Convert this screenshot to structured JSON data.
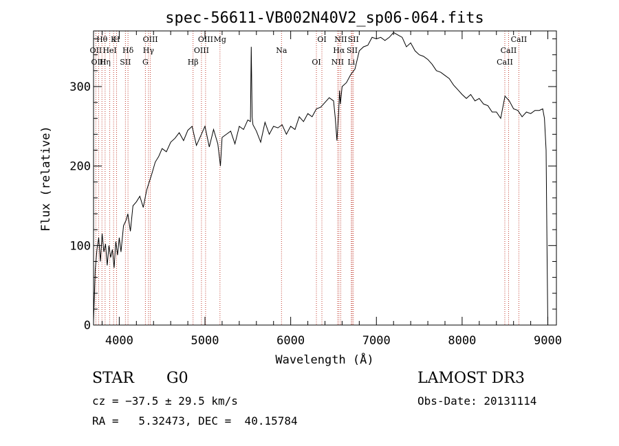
{
  "chart_data": {
    "type": "line",
    "title": "spec-56611-VB002N40V2_sp06-064.fits",
    "xlabel": "Wavelength (Å)",
    "ylabel": "Flux (relative)",
    "xlim": [
      3700,
      9100
    ],
    "ylim": [
      0,
      370
    ],
    "xticks": [
      4000,
      5000,
      6000,
      7000,
      8000,
      9000
    ],
    "yticks": [
      0,
      100,
      200,
      300
    ],
    "series": [
      {
        "name": "spectrum",
        "x": [
          3700,
          3720,
          3740,
          3760,
          3780,
          3800,
          3820,
          3840,
          3860,
          3880,
          3900,
          3920,
          3940,
          3960,
          3980,
          4000,
          4020,
          4050,
          4080,
          4100,
          4130,
          4160,
          4200,
          4240,
          4280,
          4320,
          4350,
          4380,
          4420,
          4460,
          4500,
          4550,
          4600,
          4650,
          4700,
          4750,
          4800,
          4850,
          4900,
          4950,
          5000,
          5050,
          5100,
          5150,
          5180,
          5200,
          5250,
          5300,
          5350,
          5400,
          5450,
          5500,
          5530,
          5540,
          5550,
          5560,
          5600,
          5650,
          5700,
          5750,
          5800,
          5850,
          5900,
          5950,
          6000,
          6050,
          6100,
          6150,
          6200,
          6250,
          6300,
          6350,
          6400,
          6450,
          6500,
          6520,
          6540,
          6560,
          6570,
          6580,
          6600,
          6650,
          6700,
          6750,
          6800,
          6850,
          6900,
          6950,
          7000,
          7050,
          7100,
          7150,
          7200,
          7250,
          7300,
          7350,
          7400,
          7450,
          7500,
          7550,
          7600,
          7650,
          7700,
          7750,
          7800,
          7850,
          7900,
          7950,
          8000,
          8050,
          8100,
          8150,
          8200,
          8250,
          8300,
          8350,
          8400,
          8450,
          8500,
          8550,
          8600,
          8650,
          8700,
          8750,
          8800,
          8850,
          8900,
          8940,
          8960,
          8980,
          8990,
          9000
        ],
        "y": [
          5,
          70,
          95,
          110,
          80,
          115,
          92,
          102,
          75,
          100,
          85,
          95,
          72,
          105,
          88,
          110,
          92,
          125,
          132,
          140,
          118,
          150,
          155,
          162,
          148,
          170,
          180,
          190,
          205,
          212,
          222,
          218,
          230,
          235,
          242,
          232,
          245,
          250,
          226,
          238,
          250,
          224,
          246,
          228,
          200,
          236,
          240,
          244,
          228,
          250,
          246,
          258,
          256,
          350,
          262,
          252,
          244,
          230,
          255,
          240,
          250,
          248,
          252,
          240,
          250,
          246,
          262,
          256,
          266,
          262,
          272,
          274,
          280,
          286,
          282,
          260,
          232,
          268,
          295,
          278,
          300,
          305,
          315,
          322,
          345,
          350,
          352,
          362,
          360,
          362,
          358,
          362,
          368,
          365,
          362,
          350,
          355,
          345,
          340,
          338,
          334,
          328,
          320,
          318,
          314,
          310,
          302,
          296,
          290,
          285,
          290,
          282,
          285,
          278,
          276,
          268,
          268,
          260,
          288,
          282,
          272,
          270,
          262,
          268,
          266,
          270,
          270,
          272,
          260,
          220,
          100,
          0
        ]
      }
    ],
    "lines": [
      {
        "label": "Hθ",
        "wave": 3798
      },
      {
        "label": "OII",
        "wave": 3727
      },
      {
        "label": "OIII",
        "wave": 3760
      },
      {
        "label": "K",
        "wave": 3934
      },
      {
        "label": "HeI",
        "wave": 3889
      },
      {
        "label": "Hη",
        "wave": 3835
      },
      {
        "label": "H",
        "wave": 3969
      },
      {
        "label": "Hδ",
        "wave": 4102
      },
      {
        "label": "SII",
        "wave": 4072
      },
      {
        "label": "OIII",
        "wave": 4363
      },
      {
        "label": "Hγ",
        "wave": 4341
      },
      {
        "label": "G",
        "wave": 4305
      },
      {
        "label": "OIII",
        "wave": 5007
      },
      {
        "label": "OIII",
        "wave": 4959
      },
      {
        "label": "Hβ",
        "wave": 4861
      },
      {
        "label": "Mg",
        "wave": 5175
      },
      {
        "label": "Na",
        "wave": 5893
      },
      {
        "label": "OI",
        "wave": 6300
      },
      {
        "label": "OI",
        "wave": 6364
      },
      {
        "label": "Hα",
        "wave": 6563
      },
      {
        "label": "NII",
        "wave": 6548
      },
      {
        "label": "NII",
        "wave": 6584
      },
      {
        "label": "SII",
        "wave": 6717
      },
      {
        "label": "Li",
        "wave": 6707
      },
      {
        "label": "SII",
        "wave": 6731
      },
      {
        "label": "CaII",
        "wave": 8542
      },
      {
        "label": "CaII",
        "wave": 8498
      },
      {
        "label": "CaII",
        "wave": 8662
      }
    ]
  },
  "info": {
    "class": "STAR",
    "subclass": "G0",
    "survey": "LAMOST DR3",
    "cz": "cz = −37.5 ± 29.5 km/s",
    "obs_date": "Obs-Date: 20131114",
    "radec": "RA =   5.32473, DEC =  40.15784"
  }
}
